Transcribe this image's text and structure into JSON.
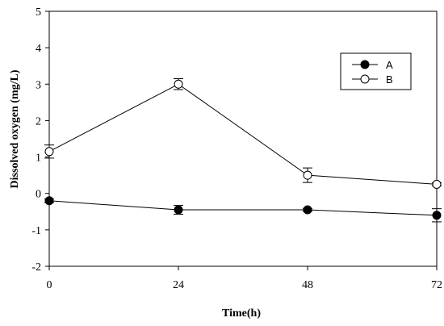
{
  "chart_data": {
    "type": "line",
    "xlabel": "Time(h)",
    "ylabel": "Dissolved oxygen (mg/L)",
    "xlim": [
      0,
      72
    ],
    "ylim": [
      -2,
      5
    ],
    "xticks": [
      0,
      24,
      48,
      72
    ],
    "yticks": [
      -2,
      -1,
      0,
      1,
      2,
      3,
      4,
      5
    ],
    "grid": false,
    "legend": "top-right",
    "x": [
      0,
      24,
      48,
      72
    ],
    "series": [
      {
        "name": "A",
        "marker": "filled-circle",
        "color": "#000000",
        "values": [
          -0.2,
          -0.45,
          -0.45,
          -0.6
        ],
        "errors": [
          0.05,
          0.12,
          0.04,
          0.18
        ]
      },
      {
        "name": "B",
        "marker": "open-circle",
        "color": "#000000",
        "values": [
          1.15,
          3.0,
          0.5,
          0.25
        ],
        "errors": [
          0.18,
          0.15,
          0.2,
          0.04
        ]
      }
    ]
  }
}
